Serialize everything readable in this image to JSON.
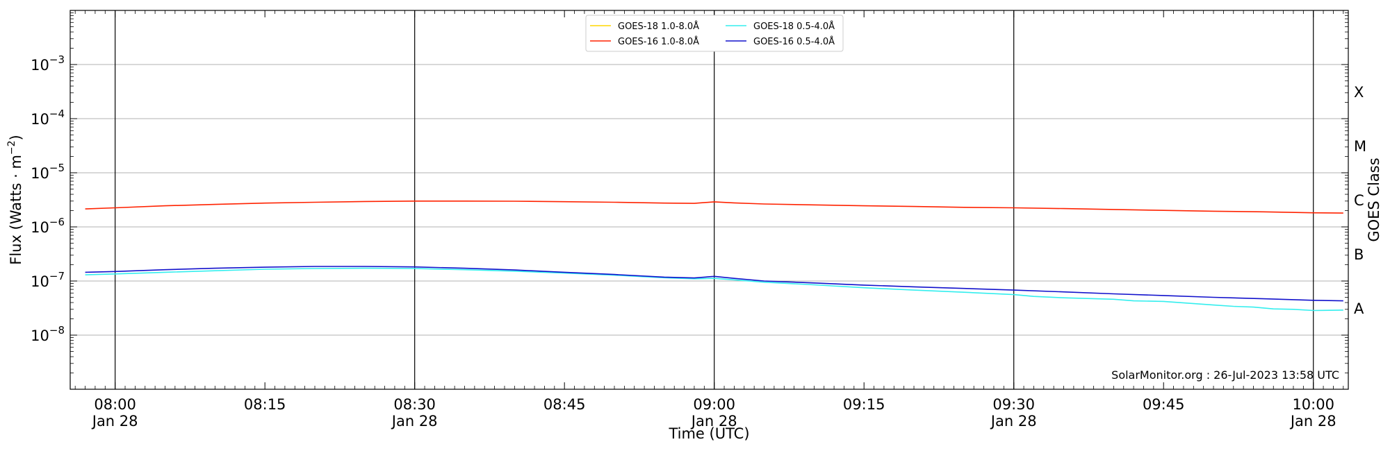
{
  "chart_data": {
    "type": "line",
    "xlabel": "Time (UTC)",
    "ylabel_main": "Flux (Watts · m",
    "ylabel_sup": "−2",
    "ylabel_close": ")",
    "ylabel_right": "GOES Class",
    "x_range_minutes": [
      -4.5,
      123.5
    ],
    "ylim": [
      1e-09,
      0.01
    ],
    "y_scale": "log",
    "grid": "horizontal at decades 1e-8 to 1e-3",
    "x_ticks": [
      {
        "minute": 0,
        "line1": "08:00",
        "line2": "Jan 28",
        "major": true
      },
      {
        "minute": 15,
        "line1": "08:15",
        "line2": "",
        "major": false
      },
      {
        "minute": 30,
        "line1": "08:30",
        "line2": "Jan 28",
        "major": true
      },
      {
        "minute": 45,
        "line1": "08:45",
        "line2": "",
        "major": false
      },
      {
        "minute": 60,
        "line1": "09:00",
        "line2": "Jan 28",
        "major": true
      },
      {
        "minute": 75,
        "line1": "09:15",
        "line2": "",
        "major": false
      },
      {
        "minute": 90,
        "line1": "09:30",
        "line2": "Jan 28",
        "major": true
      },
      {
        "minute": 105,
        "line1": "09:45",
        "line2": "",
        "major": false
      },
      {
        "minute": 120,
        "line1": "10:00",
        "line2": "Jan 28",
        "major": true
      }
    ],
    "y_ticks": [
      {
        "exp": -8,
        "base": "10",
        "sup": "−8"
      },
      {
        "exp": -7,
        "base": "10",
        "sup": "−7"
      },
      {
        "exp": -6,
        "base": "10",
        "sup": "−6"
      },
      {
        "exp": -5,
        "base": "10",
        "sup": "−5"
      },
      {
        "exp": -4,
        "base": "10",
        "sup": "−4"
      },
      {
        "exp": -3,
        "base": "10",
        "sup": "−3"
      }
    ],
    "goes_classes": [
      {
        "label": "A",
        "exp": -7.5
      },
      {
        "label": "B",
        "exp": -6.5
      },
      {
        "label": "C",
        "exp": -5.5
      },
      {
        "label": "M",
        "exp": -4.5
      },
      {
        "label": "X",
        "exp": -3.5
      }
    ],
    "legend": {
      "placement": "top-center",
      "entries": [
        {
          "label": "GOES-18 1.0-8.0Å",
          "color": "#FFD700"
        },
        {
          "label": "GOES-16 1.0-8.0Å",
          "color": "#FF2200"
        },
        {
          "label": "GOES-18 0.5-4.0Å",
          "color": "#33EEEE"
        },
        {
          "label": "GOES-16 0.5-4.0Å",
          "color": "#1111CC"
        }
      ]
    },
    "series": [
      {
        "name": "GOES-16 1.0-8.0Å",
        "color": "#FF2200",
        "x": [
          -3,
          0,
          5,
          10,
          15,
          20,
          25,
          30,
          35,
          40,
          45,
          50,
          55,
          58,
          60,
          62,
          65,
          70,
          75,
          80,
          85,
          90,
          95,
          100,
          105,
          110,
          115,
          120,
          123
        ],
        "y": [
          2.15e-06,
          2.25e-06,
          2.45e-06,
          2.6e-06,
          2.75e-06,
          2.85e-06,
          2.95e-06,
          3e-06,
          3e-06,
          2.98e-06,
          2.92e-06,
          2.85e-06,
          2.75e-06,
          2.72e-06,
          2.9e-06,
          2.78e-06,
          2.65e-06,
          2.55e-06,
          2.45e-06,
          2.38e-06,
          2.3e-06,
          2.25e-06,
          2.18e-06,
          2.1e-06,
          2.02e-06,
          1.95e-06,
          1.9e-06,
          1.82e-06,
          1.8e-06
        ]
      },
      {
        "name": "GOES-18 0.5-4.0Å",
        "color": "#33EEEE",
        "x": [
          -3,
          0,
          5,
          10,
          15,
          20,
          25,
          30,
          35,
          40,
          45,
          50,
          55,
          58,
          60,
          62,
          65,
          70,
          75,
          80,
          85,
          90,
          92,
          95,
          100,
          102,
          105,
          110,
          112,
          114,
          116,
          118,
          120,
          123
        ],
        "y": [
          1.3e-07,
          1.35e-07,
          1.45e-07,
          1.55e-07,
          1.65e-07,
          1.7e-07,
          1.72e-07,
          1.7e-07,
          1.62e-07,
          1.52e-07,
          1.4e-07,
          1.28e-07,
          1.15e-07,
          1.1e-07,
          1.12e-07,
          1.05e-07,
          9.5e-08,
          8.5e-08,
          7.5e-08,
          6.8e-08,
          6.2e-08,
          5.6e-08,
          5.2e-08,
          4.9e-08,
          4.6e-08,
          4.3e-08,
          4.2e-08,
          3.6e-08,
          3.4e-08,
          3.3e-08,
          3.05e-08,
          3e-08,
          2.85e-08,
          2.9e-08
        ]
      },
      {
        "name": "GOES-16 0.5-4.0Å",
        "color": "#1111CC",
        "x": [
          -3,
          0,
          5,
          10,
          15,
          20,
          25,
          30,
          35,
          40,
          45,
          50,
          55,
          58,
          60,
          62,
          65,
          70,
          75,
          80,
          85,
          90,
          95,
          100,
          105,
          110,
          115,
          120,
          123
        ],
        "y": [
          1.45e-07,
          1.5e-07,
          1.62e-07,
          1.72e-07,
          1.8e-07,
          1.86e-07,
          1.86e-07,
          1.82e-07,
          1.72e-07,
          1.6e-07,
          1.45e-07,
          1.32e-07,
          1.18e-07,
          1.14e-07,
          1.22e-07,
          1.12e-07,
          1e-07,
          9.2e-08,
          8.4e-08,
          7.8e-08,
          7.3e-08,
          6.8e-08,
          6.3e-08,
          5.8e-08,
          5.4e-08,
          5e-08,
          4.7e-08,
          4.4e-08,
          4.3e-08
        ]
      }
    ],
    "annotation": "SolarMonitor.org : 26-Jul-2023 13:58 UTC"
  }
}
